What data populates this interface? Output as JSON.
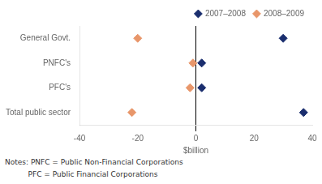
{
  "chart_data": {
    "type": "scatter",
    "orientation": "horizontal",
    "categories": [
      "General Govt.",
      "PNFC's",
      "PFC's",
      "Total public sector"
    ],
    "series": [
      {
        "name": "2007–2008",
        "color": "#1a2e6e",
        "values": [
          30,
          2,
          2,
          37
        ]
      },
      {
        "name": "2008–2009",
        "color": "#e8966a",
        "values": [
          -20,
          -1,
          -2,
          -22
        ]
      }
    ],
    "marker": "diamond",
    "xlim": [
      -40,
      40
    ],
    "xticks": [
      -40,
      -20,
      0,
      20,
      40
    ],
    "xlabel": "$billion",
    "legend": "upper right",
    "grid": false,
    "annotations": [
      "Notes: PNFC = Public Non-Financial Corporations",
      "          PFC = Public Financial Corporations"
    ]
  }
}
